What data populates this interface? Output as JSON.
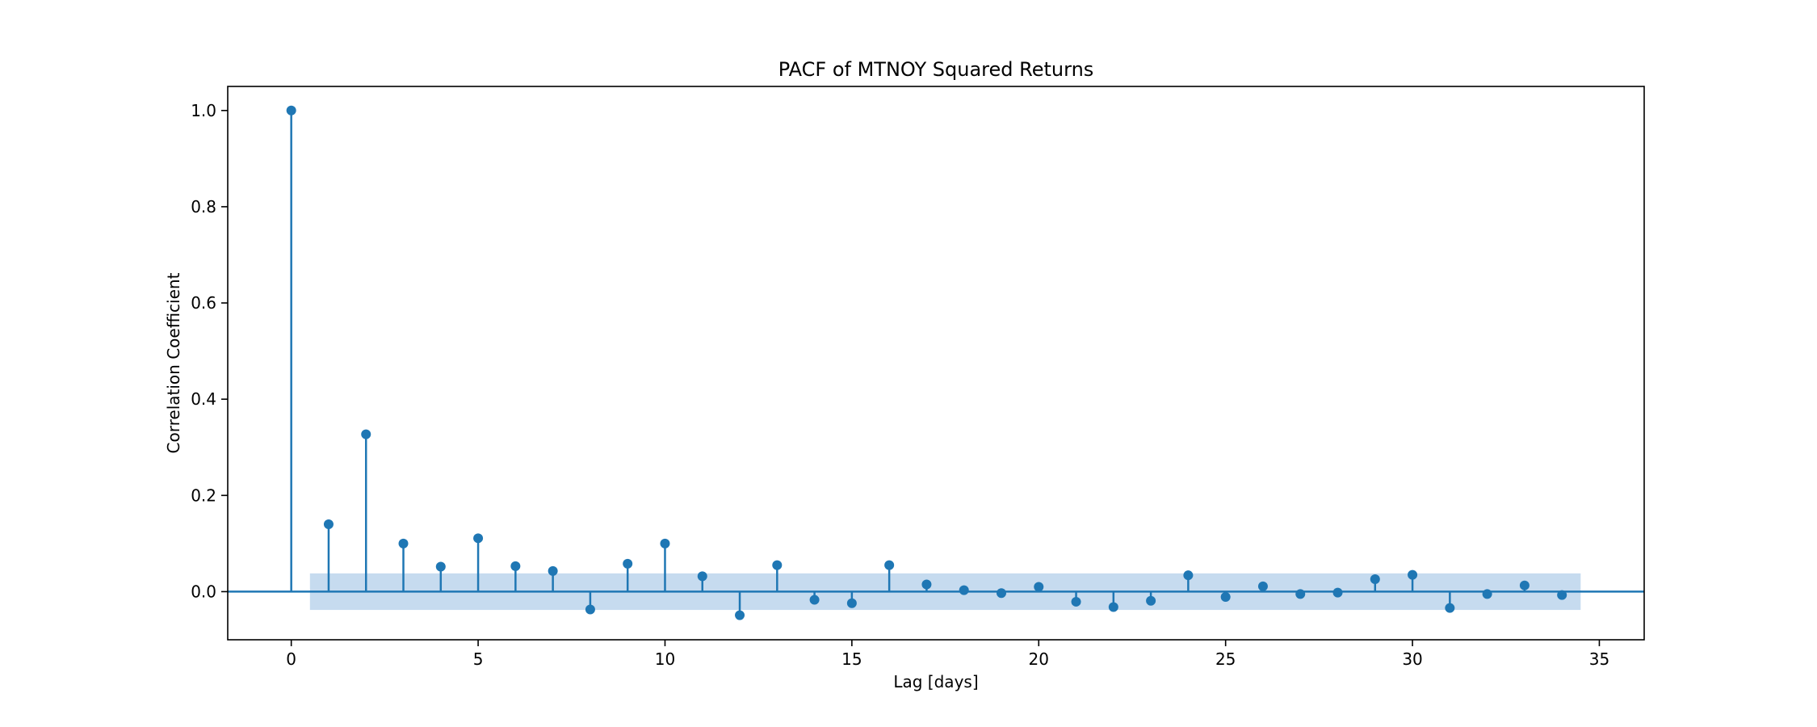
{
  "chart_data": {
    "type": "stem",
    "title": "PACF of MTNOY Squared Returns",
    "xlabel": "Lag [days]",
    "ylabel": "Correlation Coefficient",
    "xlim": [
      -1.7,
      36.2
    ],
    "ylim": [
      -0.1,
      1.05
    ],
    "xticks": [
      0,
      5,
      10,
      15,
      20,
      25,
      30,
      35
    ],
    "yticks": [
      0.0,
      0.2,
      0.4,
      0.6,
      0.8,
      1.0
    ],
    "xtick_labels": [
      "0",
      "5",
      "10",
      "15",
      "20",
      "25",
      "30",
      "35"
    ],
    "ytick_labels": [
      "0.0",
      "0.2",
      "0.4",
      "0.6",
      "0.8",
      "1.0"
    ],
    "confidence_band": {
      "x_start": 0.5,
      "x_end": 34.5,
      "lower": -0.038,
      "upper": 0.038
    },
    "colors": {
      "stem": "#1f77b4",
      "band": "#c6dbef",
      "axis": "#000000"
    },
    "lags": [
      0,
      1,
      2,
      3,
      4,
      5,
      6,
      7,
      8,
      9,
      10,
      11,
      12,
      13,
      14,
      15,
      16,
      17,
      18,
      19,
      20,
      21,
      22,
      23,
      24,
      25,
      26,
      27,
      28,
      29,
      30,
      31,
      32,
      33,
      34
    ],
    "values": [
      1.0,
      0.14,
      0.327,
      0.1,
      0.052,
      0.111,
      0.053,
      0.043,
      -0.037,
      0.058,
      0.1,
      0.032,
      -0.049,
      0.055,
      -0.017,
      -0.024,
      0.055,
      0.015,
      0.003,
      -0.003,
      0.01,
      -0.021,
      -0.032,
      -0.019,
      0.034,
      -0.011,
      0.011,
      -0.005,
      -0.002,
      0.026,
      0.035,
      -0.034,
      -0.005,
      0.013,
      -0.007
    ]
  }
}
